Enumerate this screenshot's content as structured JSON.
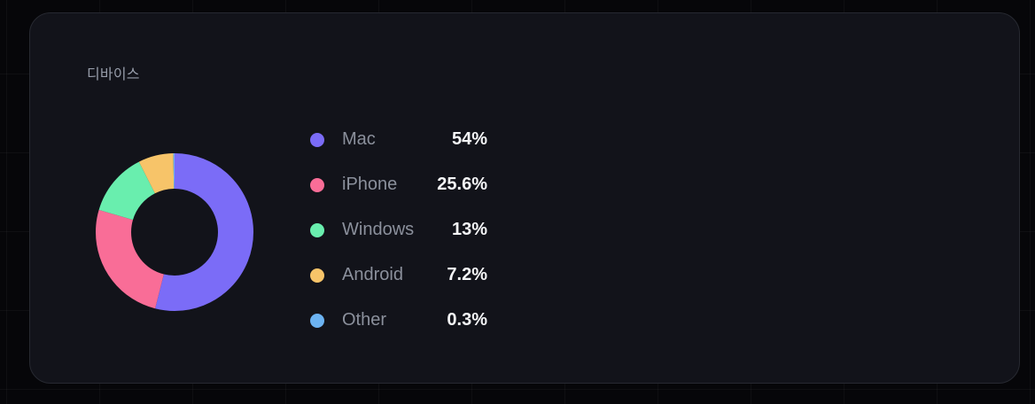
{
  "card": {
    "title": "디바이스"
  },
  "chart_data": {
    "type": "pie",
    "variant": "donut",
    "title": "디바이스",
    "legend_position": "right",
    "categories": [
      "Mac",
      "iPhone",
      "Windows",
      "Android",
      "Other"
    ],
    "values": [
      54,
      25.6,
      13,
      7.2,
      0.3
    ],
    "slices": [
      {
        "label": "Mac",
        "value": 54,
        "value_label": "54%",
        "color": "#7b6cf7"
      },
      {
        "label": "iPhone",
        "value": 25.6,
        "value_label": "25.6%",
        "color": "#f96d97"
      },
      {
        "label": "Windows",
        "value": 13,
        "value_label": "13%",
        "color": "#69eeae"
      },
      {
        "label": "Android",
        "value": 7.2,
        "value_label": "7.2%",
        "color": "#f7c469"
      },
      {
        "label": "Other",
        "value": 0.3,
        "value_label": "0.3%",
        "color": "#6cb3f2"
      }
    ],
    "start_angle_deg": 0,
    "direction": "clockwise"
  },
  "colors": {
    "page_background": "#060609",
    "card_background": "#12131a",
    "card_border": "#272931",
    "title_text": "#979daa",
    "label_text": "#8b909c",
    "value_text": "#f4f5f7"
  }
}
